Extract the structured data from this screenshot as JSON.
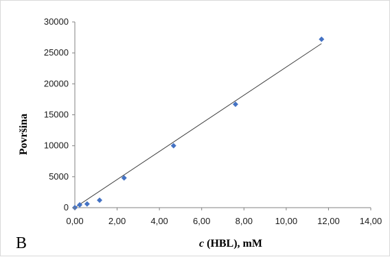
{
  "chart_data": {
    "type": "scatter",
    "panel_label": "B",
    "xlabel_italic": "c",
    "xlabel_rest": " (HBL), mM",
    "ylabel": "Površina",
    "xlim": [
      0,
      14
    ],
    "ylim": [
      0,
      30000
    ],
    "x_ticks": [
      "0,00",
      "2,00",
      "4,00",
      "6,00",
      "8,00",
      "10,00",
      "12,00",
      "14,00"
    ],
    "y_ticks": [
      "0",
      "5000",
      "10000",
      "15000",
      "20000",
      "25000",
      "30000"
    ],
    "grid": false,
    "legend": "none",
    "marker": "diamond",
    "colors": {
      "points": "#4472c4",
      "trendline": "#404040",
      "axis": "#808080"
    },
    "series": [
      {
        "x": [
          0.0,
          0.23,
          0.58,
          1.17,
          2.33,
          4.67,
          7.6,
          11.67
        ],
        "y": [
          0,
          450,
          600,
          1200,
          4800,
          10000,
          16700,
          27200
        ]
      }
    ],
    "trendline": {
      "x": [
        0.0,
        11.67
      ],
      "y": [
        0,
        26500
      ]
    }
  }
}
